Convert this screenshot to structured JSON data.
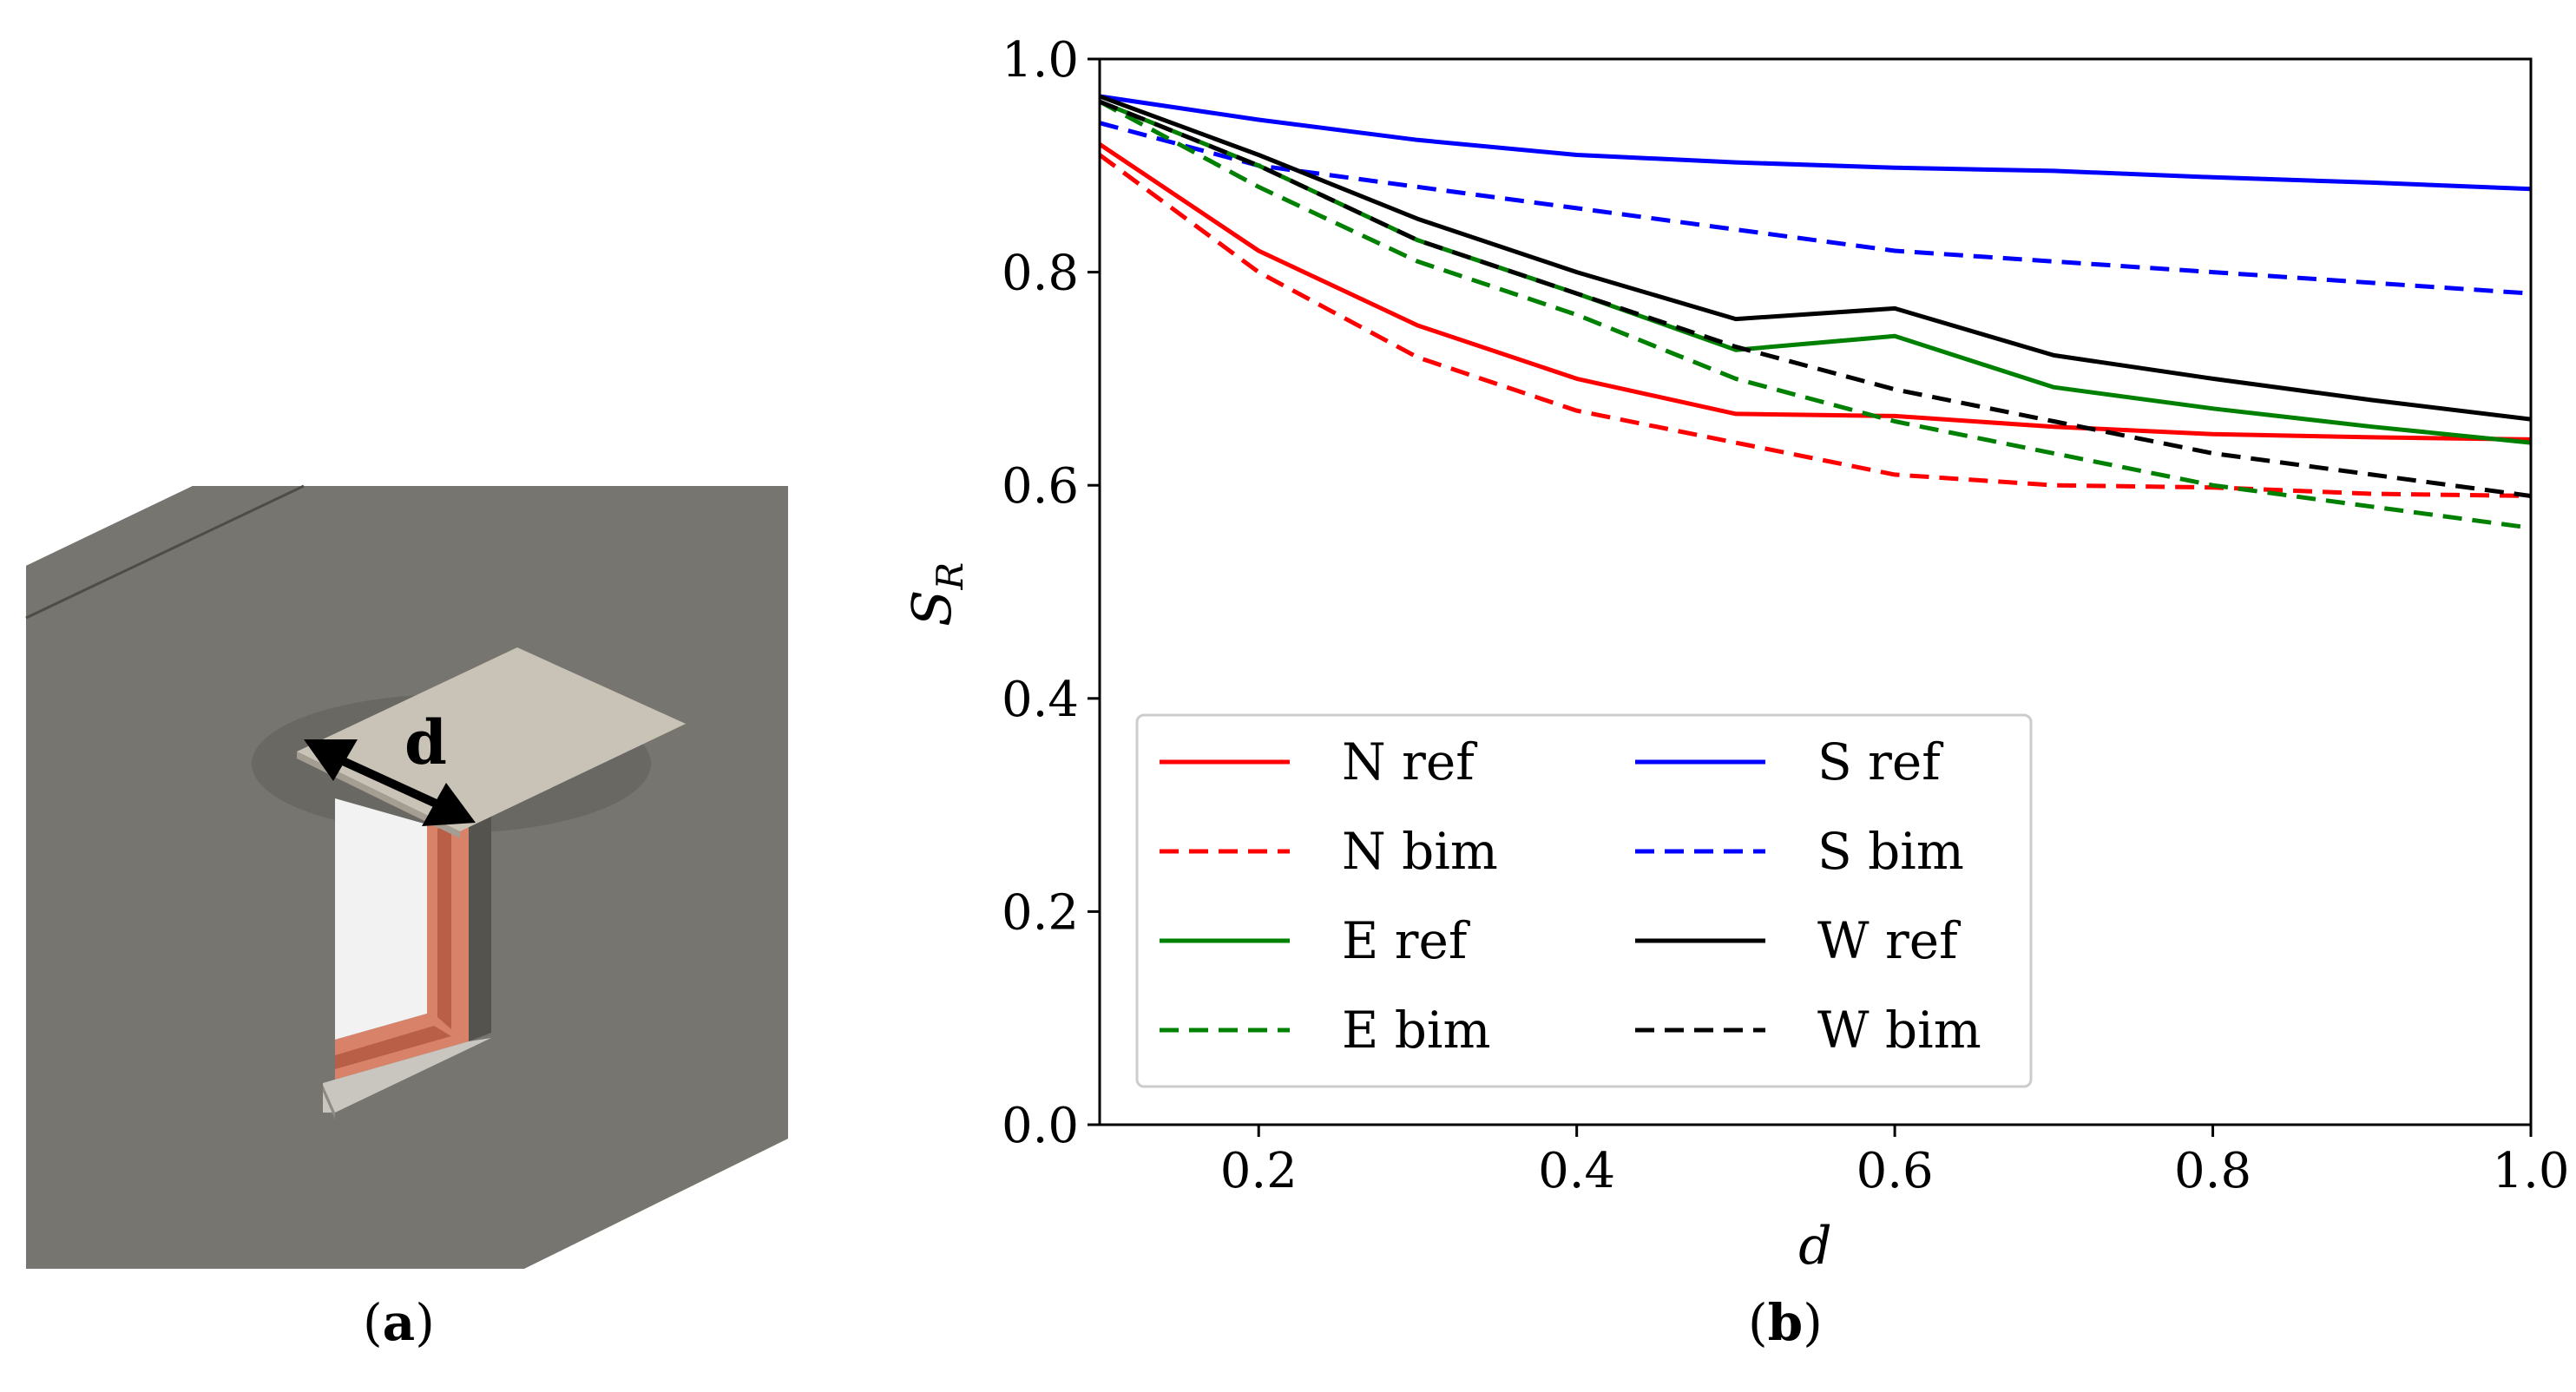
{
  "panels": {
    "a": {
      "open": "(",
      "letter": "a",
      "close": ")"
    },
    "b": {
      "open": "(",
      "letter": "b",
      "close": ")"
    }
  },
  "illustration": {
    "dimension_label": "d",
    "colors": {
      "wall_face": "#76756f",
      "wall_top": "#6b6a64",
      "wall_side": "#5d5c56",
      "overhang": "#c9c2b7",
      "window_frame": "#d9826a",
      "glass": "#f2f2f2"
    }
  },
  "chart_data": {
    "type": "line",
    "title": "",
    "xlabel": "d",
    "ylabel_main": "S",
    "ylabel_sub": "R",
    "xlim": [
      0.1,
      1.0
    ],
    "ylim": [
      0.0,
      1.0
    ],
    "x_ticks": [
      "0.2",
      "0.4",
      "0.6",
      "0.8",
      "1.0"
    ],
    "x_tick_values": [
      0.2,
      0.4,
      0.6,
      0.8,
      1.0
    ],
    "y_ticks": [
      "0.0",
      "0.2",
      "0.4",
      "0.6",
      "0.8",
      "1.0"
    ],
    "y_tick_values": [
      0.0,
      0.2,
      0.4,
      0.6,
      0.8,
      1.0
    ],
    "grid": false,
    "legend_position": "lower-left",
    "x": [
      0.1,
      0.2,
      0.3,
      0.4,
      0.5,
      0.6,
      0.7,
      0.8,
      0.9,
      1.0
    ],
    "series": [
      {
        "name": "N ref",
        "color": "#ff0000",
        "dash": false,
        "values": [
          0.92,
          0.82,
          0.75,
          0.7,
          0.667,
          0.665,
          0.655,
          0.648,
          0.645,
          0.643
        ]
      },
      {
        "name": "S ref",
        "color": "#0000ff",
        "dash": false,
        "values": [
          0.965,
          0.943,
          0.924,
          0.91,
          0.903,
          0.898,
          0.895,
          0.889,
          0.884,
          0.878
        ]
      },
      {
        "name": "N bim",
        "color": "#ff0000",
        "dash": true,
        "values": [
          0.91,
          0.8,
          0.72,
          0.67,
          0.64,
          0.61,
          0.6,
          0.598,
          0.592,
          0.59
        ]
      },
      {
        "name": "S bim",
        "color": "#0000ff",
        "dash": true,
        "values": [
          0.94,
          0.9,
          0.88,
          0.86,
          0.84,
          0.82,
          0.81,
          0.8,
          0.79,
          0.78
        ]
      },
      {
        "name": "E ref",
        "color": "#008000",
        "dash": false,
        "values": [
          0.96,
          0.9,
          0.83,
          0.78,
          0.727,
          0.74,
          0.692,
          0.672,
          0.655,
          0.64
        ]
      },
      {
        "name": "W ref",
        "color": "#000000",
        "dash": false,
        "values": [
          0.965,
          0.91,
          0.85,
          0.8,
          0.756,
          0.766,
          0.722,
          0.7,
          0.68,
          0.662
        ]
      },
      {
        "name": "E bim",
        "color": "#008000",
        "dash": true,
        "values": [
          0.96,
          0.88,
          0.81,
          0.76,
          0.7,
          0.66,
          0.63,
          0.6,
          0.58,
          0.56
        ]
      },
      {
        "name": "W bim",
        "color": "#000000",
        "dash": true,
        "values": [
          0.96,
          0.9,
          0.83,
          0.78,
          0.73,
          0.69,
          0.66,
          0.63,
          0.61,
          0.59
        ]
      }
    ]
  }
}
